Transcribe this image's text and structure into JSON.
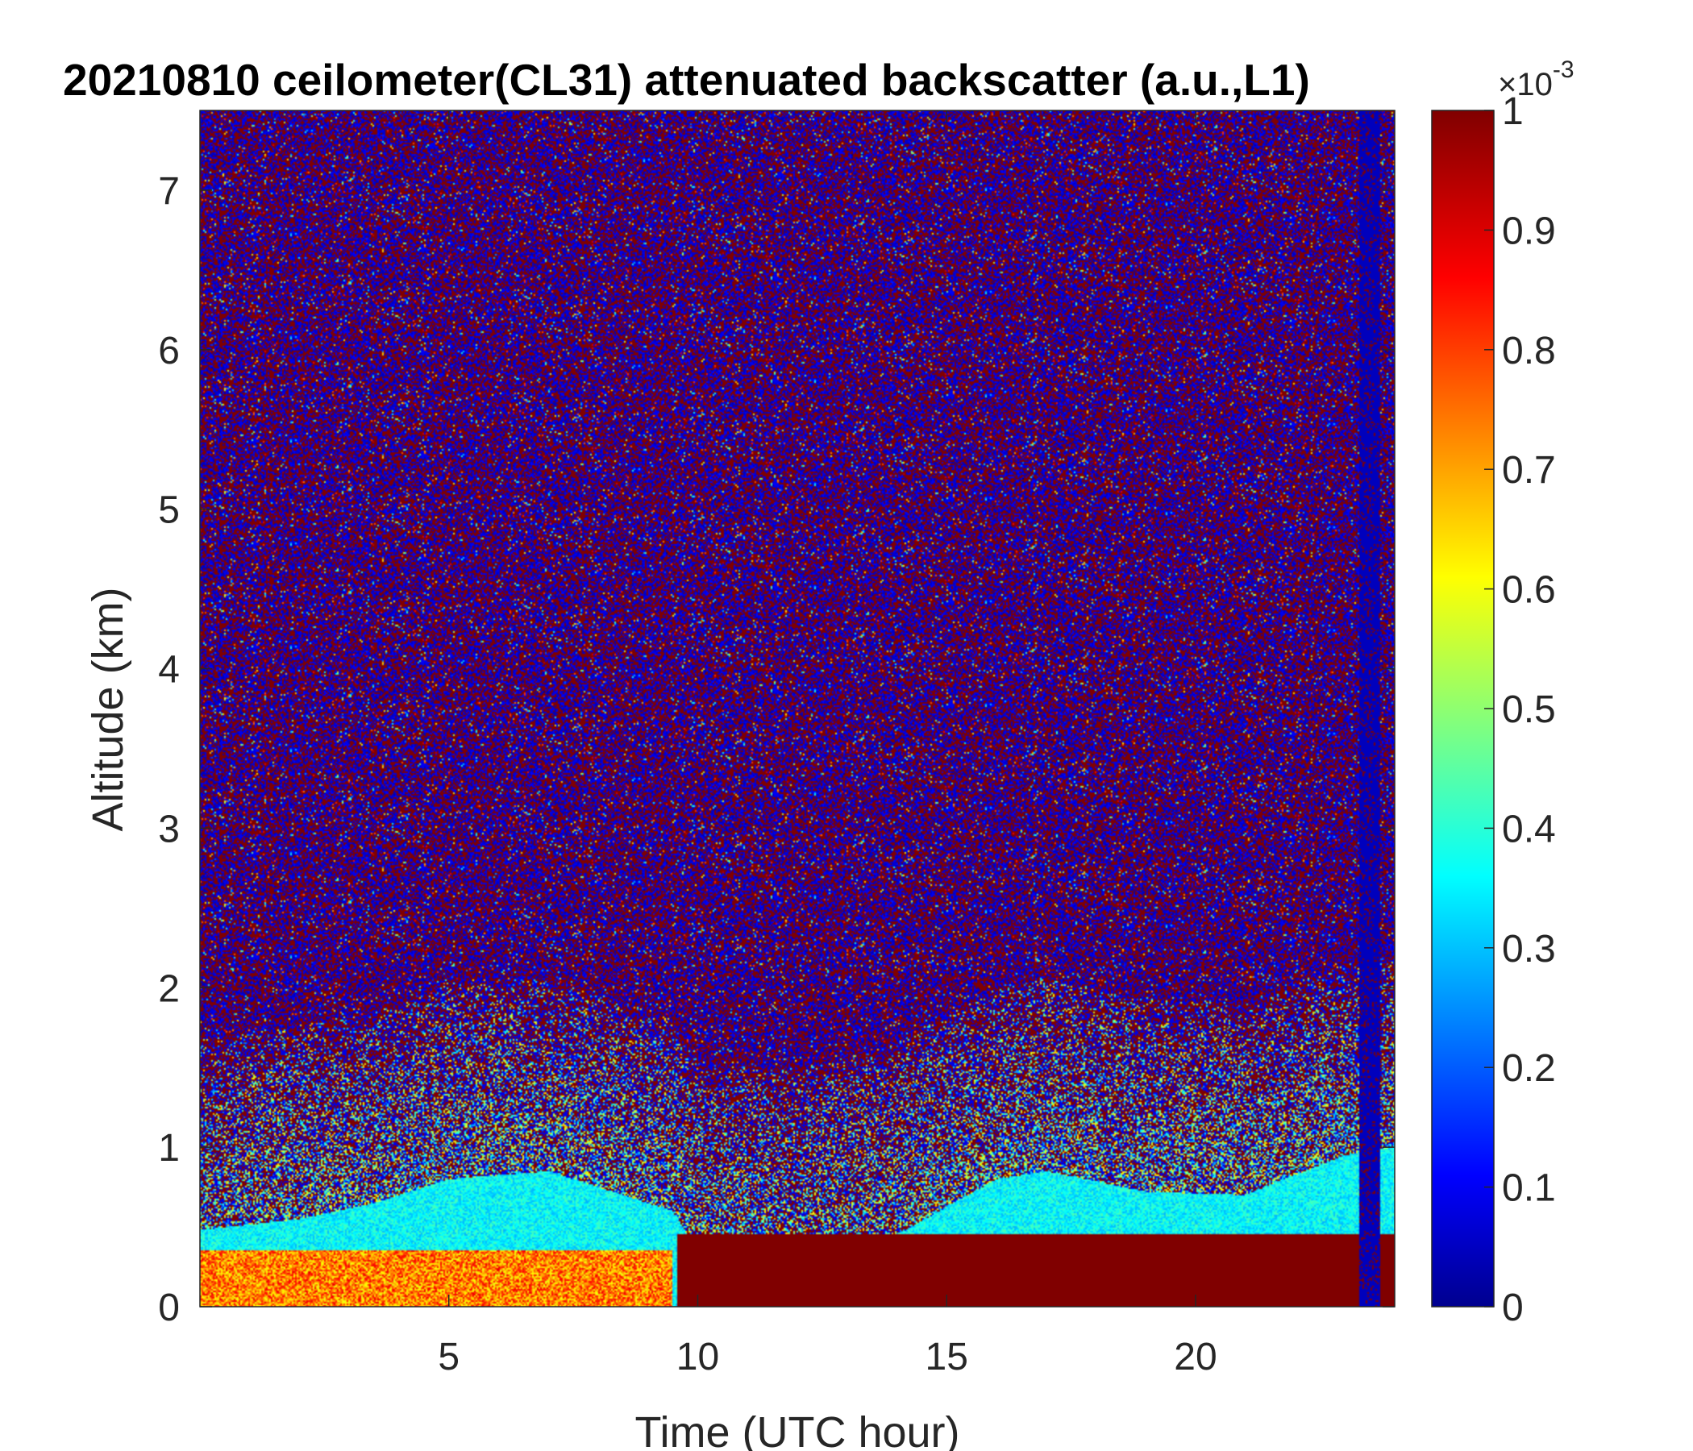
{
  "chart_data": {
    "type": "heatmap",
    "title": "20210810 ceilometer(CL31) attenuated backscatter (a.u.,L1)",
    "xlabel": "Time (UTC hour)",
    "ylabel": "Altitude (km)",
    "xlim": [
      0,
      24
    ],
    "ylim": [
      0,
      7.5
    ],
    "x_ticks": [
      5,
      10,
      15,
      20
    ],
    "x_tick_labels": [
      "5",
      "10",
      "15",
      "20"
    ],
    "y_ticks": [
      0,
      1,
      2,
      3,
      4,
      5,
      6,
      7
    ],
    "y_tick_labels": [
      "0",
      "1",
      "2",
      "3",
      "4",
      "5",
      "6",
      "7"
    ],
    "colorbar": {
      "range": [
        0,
        1
      ],
      "ticks": [
        0,
        0.1,
        0.2,
        0.3,
        0.4,
        0.5,
        0.6,
        0.7,
        0.8,
        0.9,
        1
      ],
      "tick_labels": [
        "0",
        "0.1",
        "0.2",
        "0.3",
        "0.4",
        "0.5",
        "0.6",
        "0.7",
        "0.8",
        "0.9",
        "1"
      ],
      "multiplier_base": "×10",
      "multiplier_exponent": "-3",
      "colormap": "jet"
    },
    "aerosol_layer_top_km": [
      {
        "t": 0,
        "h": 0.48
      },
      {
        "t": 2,
        "h": 0.55
      },
      {
        "t": 3.5,
        "h": 0.65
      },
      {
        "t": 5,
        "h": 0.8
      },
      {
        "t": 7,
        "h": 0.85
      },
      {
        "t": 9.5,
        "h": 0.6
      },
      {
        "t": 10,
        "h": 0.35
      },
      {
        "t": 12,
        "h": 0.28
      },
      {
        "t": 14,
        "h": 0.45
      },
      {
        "t": 16,
        "h": 0.8
      },
      {
        "t": 17,
        "h": 0.85
      },
      {
        "t": 19,
        "h": 0.72
      },
      {
        "t": 21,
        "h": 0.7
      },
      {
        "t": 23,
        "h": 0.95
      },
      {
        "t": 24,
        "h": 1.0
      }
    ],
    "features": [
      {
        "name": "dense layer (saturated)",
        "t_start": 9.6,
        "t_end": 24,
        "h_top": 0.45,
        "value": 1
      },
      {
        "name": "near-surface high backscatter",
        "t_start": 0,
        "t_end": 9.5,
        "h_top": 0.35,
        "value": 0.75
      },
      {
        "name": "low-signal column",
        "t_start": 23.3,
        "t_end": 23.7,
        "h_top": 7.5,
        "value": 0.0
      }
    ],
    "grid": false
  }
}
